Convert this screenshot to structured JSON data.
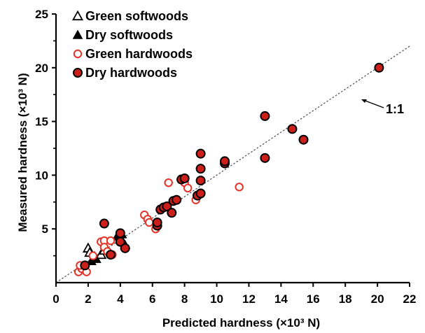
{
  "chart_data": {
    "type": "scatter",
    "xlabel": "Predicted hardness (×10³ N)",
    "ylabel": "Measured hardness (×10³ N)",
    "xlim": [
      0,
      22
    ],
    "ylim": [
      0,
      25
    ],
    "xticks": [
      "0",
      "2",
      "4",
      "6",
      "8",
      "10",
      "12",
      "14",
      "16",
      "18",
      "20",
      "22"
    ],
    "yticks": [
      "5",
      "10",
      "15",
      "20",
      "25"
    ],
    "grid": false,
    "legend_position": "top-left",
    "reference_line": {
      "label": "1:1",
      "from": [
        0,
        0
      ],
      "to": [
        22,
        22
      ]
    },
    "colors": {
      "open_marker": "#e53227",
      "filled_marker": "#cc1f1a",
      "marker_edge": "#000000",
      "axis": "#000000",
      "reference_line": "#555555"
    },
    "series": [
      {
        "name": "Green softwoods",
        "marker": "open-triangle",
        "points": [
          [
            2.0,
            3.2
          ],
          [
            2.1,
            2.8
          ],
          [
            2.4,
            2.4
          ],
          [
            2.8,
            2.6
          ],
          [
            3.0,
            3.0
          ]
        ]
      },
      {
        "name": "Dry softwoods",
        "marker": "filled-triangle",
        "points": [
          [
            2.2,
            2.0
          ],
          [
            2.5,
            2.2
          ],
          [
            3.8,
            4.3
          ],
          [
            4.1,
            4.5
          ],
          [
            4.3,
            3.5
          ]
        ]
      },
      {
        "name": "Green hardwoods",
        "marker": "open-circle",
        "points": [
          [
            1.4,
            1.0
          ],
          [
            1.6,
            1.3
          ],
          [
            1.5,
            1.6
          ],
          [
            1.9,
            1.0
          ],
          [
            2.3,
            2.5
          ],
          [
            2.8,
            3.8
          ],
          [
            3.0,
            3.9
          ],
          [
            3.0,
            3.3
          ],
          [
            3.2,
            2.9
          ],
          [
            3.4,
            3.9
          ],
          [
            3.5,
            2.6
          ],
          [
            5.5,
            6.3
          ],
          [
            5.7,
            5.9
          ],
          [
            5.8,
            5.6
          ],
          [
            6.2,
            5.0
          ],
          [
            7.0,
            9.3
          ],
          [
            8.0,
            9.3
          ],
          [
            8.2,
            8.8
          ],
          [
            8.7,
            7.7
          ],
          [
            11.4,
            8.9
          ]
        ]
      },
      {
        "name": "Dry hardwoods",
        "marker": "filled-circle",
        "points": [
          [
            1.8,
            1.6
          ],
          [
            3.0,
            5.5
          ],
          [
            3.4,
            2.6
          ],
          [
            4.0,
            4.6
          ],
          [
            4.0,
            3.8
          ],
          [
            4.3,
            3.2
          ],
          [
            6.3,
            5.3
          ],
          [
            6.3,
            5.6
          ],
          [
            6.5,
            6.8
          ],
          [
            6.7,
            7.0
          ],
          [
            6.9,
            7.1
          ],
          [
            7.2,
            6.5
          ],
          [
            7.3,
            7.6
          ],
          [
            7.5,
            7.7
          ],
          [
            7.8,
            9.6
          ],
          [
            8.0,
            9.7
          ],
          [
            8.8,
            8.1
          ],
          [
            9.0,
            8.3
          ],
          [
            9.0,
            9.5
          ],
          [
            9.0,
            10.6
          ],
          [
            9.0,
            12.0
          ],
          [
            10.5,
            11.1
          ],
          [
            10.5,
            11.3
          ],
          [
            13.0,
            15.5
          ],
          [
            13.0,
            11.6
          ],
          [
            14.7,
            14.3
          ],
          [
            15.4,
            13.3
          ],
          [
            20.1,
            20.0
          ]
        ]
      }
    ]
  }
}
